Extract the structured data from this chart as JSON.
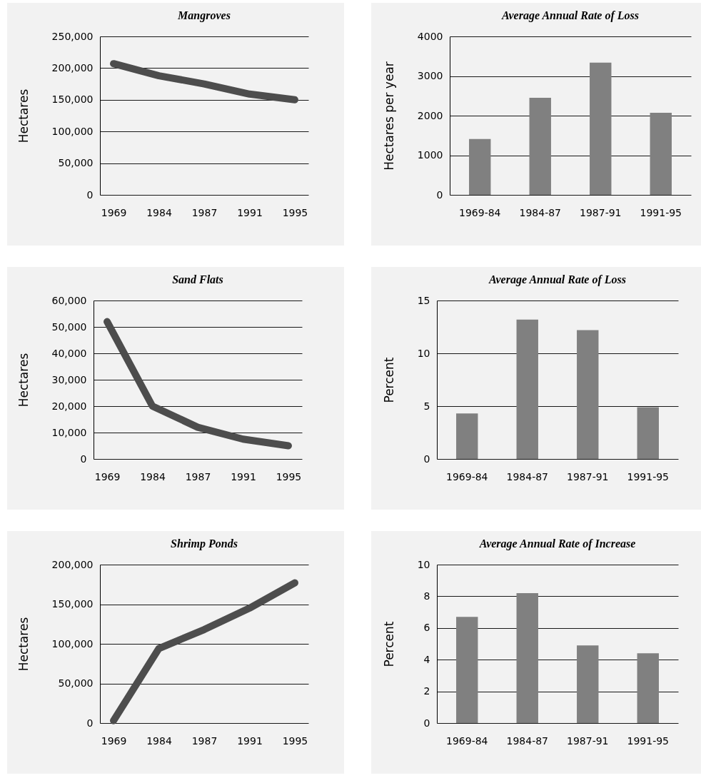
{
  "chart_data": [
    {
      "type": "line",
      "title": "Mangroves",
      "ylabel": "Hectares",
      "categories": [
        "1969",
        "1984",
        "1987",
        "1991",
        "1995"
      ],
      "series": [
        {
          "color": "#4d4d4d",
          "values": [
            207000,
            188000,
            175000,
            159000,
            150000
          ]
        }
      ],
      "ylim": [
        0,
        250000
      ],
      "yticks": [
        0,
        {
          "value": 50000,
          "label": "50,000"
        },
        {
          "value": 100000,
          "label": "100,000"
        },
        {
          "value": 150000,
          "label": "150,000"
        },
        {
          "value": 200000,
          "label": "200,000"
        },
        {
          "value": 250000,
          "label": "250,000"
        }
      ],
      "grid": "y"
    },
    {
      "type": "bar",
      "title": "Average Annual Rate of Loss",
      "ylabel": "Hectares per year",
      "categories": [
        "1969-84",
        "1984-87",
        "1987-91",
        "1991-95"
      ],
      "values": [
        1410,
        2450,
        3340,
        2070
      ],
      "color": "#808080",
      "ylim": [
        0,
        4000
      ],
      "yticks": [
        0,
        1000,
        2000,
        3000,
        4000
      ],
      "grid": "y"
    },
    {
      "type": "line",
      "title": "Sand Flats",
      "ylabel": "Hectares",
      "categories": [
        "1969",
        "1984",
        "1987",
        "1991",
        "1995"
      ],
      "series": [
        {
          "color": "#4d4d4d",
          "values": [
            52000,
            20000,
            12000,
            7500,
            5000
          ]
        }
      ],
      "ylim": [
        0,
        60000
      ],
      "yticks": [
        0,
        {
          "value": 10000,
          "label": "10,000"
        },
        {
          "value": 20000,
          "label": "20,000"
        },
        {
          "value": 30000,
          "label": "30,000"
        },
        {
          "value": 40000,
          "label": "40,000"
        },
        {
          "value": 50000,
          "label": "50,000"
        },
        {
          "value": 60000,
          "label": "60,000"
        }
      ],
      "grid": "y"
    },
    {
      "type": "bar",
      "title": "Average Annual Rate of Loss",
      "ylabel": "Percent",
      "categories": [
        "1969-84",
        "1984-87",
        "1987-91",
        "1991-95"
      ],
      "values": [
        4.3,
        13.2,
        12.2,
        4.9
      ],
      "color": "#808080",
      "ylim": [
        0,
        15
      ],
      "yticks": [
        0,
        5,
        10,
        15
      ],
      "grid": "y"
    },
    {
      "type": "line",
      "title": "Shrimp Ponds",
      "ylabel": "Hectares",
      "categories": [
        "1969",
        "1984",
        "1987",
        "1991",
        "1995"
      ],
      "series": [
        {
          "color": "#4d4d4d",
          "values": [
            3000,
            94000,
            118000,
            145000,
            177000
          ]
        }
      ],
      "ylim": [
        0,
        200000
      ],
      "yticks": [
        0,
        {
          "value": 50000,
          "label": "50,000"
        },
        {
          "value": 100000,
          "label": "100,000"
        },
        {
          "value": 150000,
          "label": "150,000"
        },
        {
          "value": 200000,
          "label": "200,000"
        }
      ],
      "grid": "y"
    },
    {
      "type": "bar",
      "title": "Average Annual Rate of Increase",
      "ylabel": "Percent",
      "categories": [
        "1969-84",
        "1984-87",
        "1987-91",
        "1991-95"
      ],
      "values": [
        6.7,
        8.2,
        4.9,
        4.4
      ],
      "color": "#808080",
      "ylim": [
        0,
        10
      ],
      "yticks": [
        0,
        2,
        4,
        6,
        8,
        10
      ],
      "grid": "y"
    }
  ]
}
